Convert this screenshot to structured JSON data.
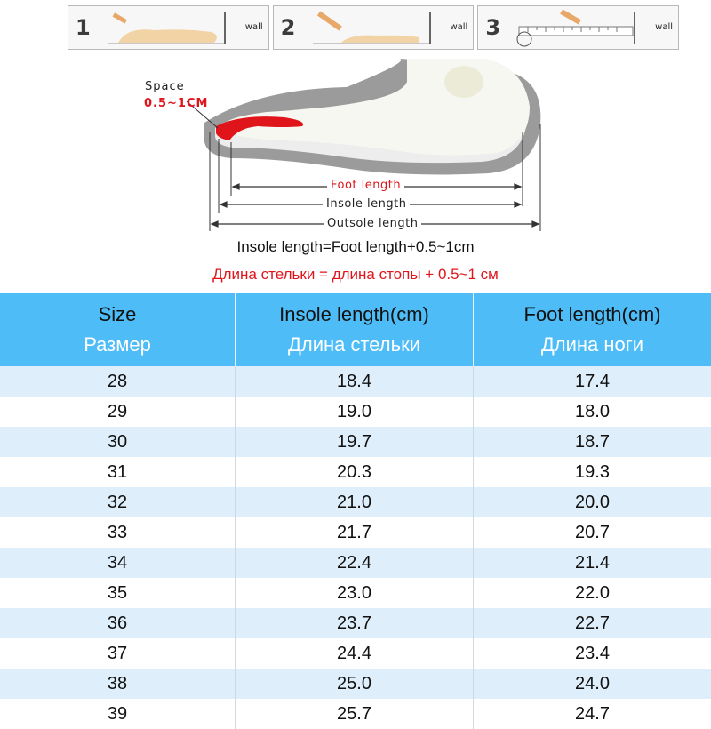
{
  "steps": [
    {
      "number": "1",
      "wall_label": "wall"
    },
    {
      "number": "2",
      "wall_label": "wall"
    },
    {
      "number": "3",
      "wall_label": "wall"
    }
  ],
  "diagram": {
    "space_label": "Space",
    "space_value": "0.5~1CM",
    "foot_length_label": "Foot length",
    "insole_length_label": "Insole length",
    "outsole_length_label": "Outsole length"
  },
  "formula": {
    "english": "Insole length=Foot length+0.5~1cm",
    "russian": "Длина стельки = длина стопы + 0.5~1 см"
  },
  "colors": {
    "header_blue": "#4ebdf7",
    "stripe_blue": "#deeefa",
    "accent_red": "#e0141b"
  },
  "table": {
    "headers": [
      {
        "en": "Size",
        "ru": "Размер"
      },
      {
        "en": "Insole length(cm)",
        "ru": "Длина стельки"
      },
      {
        "en": "Foot length(cm)",
        "ru": "Длина ноги"
      }
    ],
    "rows": [
      [
        "28",
        "18.4",
        "17.4"
      ],
      [
        "29",
        "19.0",
        "18.0"
      ],
      [
        "30",
        "19.7",
        "18.7"
      ],
      [
        "31",
        "20.3",
        "19.3"
      ],
      [
        "32",
        "21.0",
        "20.0"
      ],
      [
        "33",
        "21.7",
        "20.7"
      ],
      [
        "34",
        "22.4",
        "21.4"
      ],
      [
        "35",
        "23.0",
        "22.0"
      ],
      [
        "36",
        "23.7",
        "22.7"
      ],
      [
        "37",
        "24.4",
        "23.4"
      ],
      [
        "38",
        "25.0",
        "24.0"
      ],
      [
        "39",
        "25.7",
        "24.7"
      ]
    ]
  }
}
